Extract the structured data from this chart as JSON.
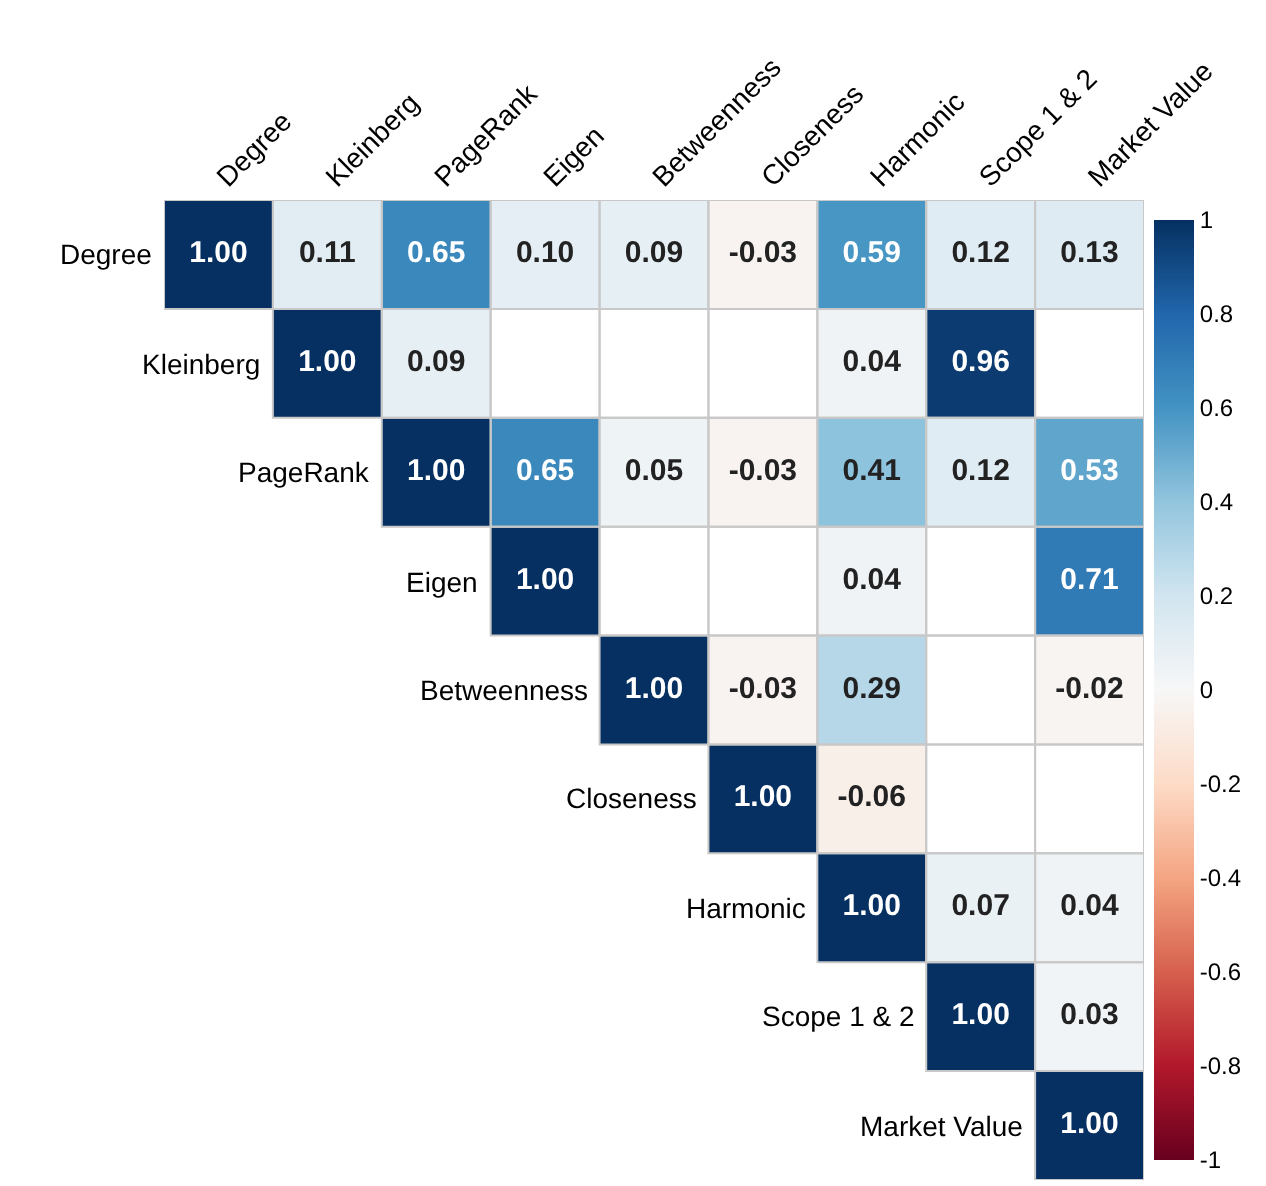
{
  "chart_data": {
    "type": "heatmap",
    "categories": [
      "Degree",
      "Kleinberg",
      "PageRank",
      "Eigen",
      "Betweenness",
      "Closeness",
      "Harmonic",
      "Scope 1 & 2",
      "Market Value"
    ],
    "y_categories": [
      "Degree",
      "Kleinberg",
      "PageRank",
      "Eigen",
      "Betweenness",
      "Closeness",
      "Harmonic",
      "Scope 1 & 2",
      "Market Value"
    ],
    "cells": [
      [
        1.0,
        0.11,
        0.65,
        0.1,
        0.09,
        -0.03,
        0.59,
        0.12,
        0.13
      ],
      [
        null,
        1.0,
        0.09,
        null,
        null,
        null,
        0.04,
        0.96,
        null
      ],
      [
        null,
        null,
        1.0,
        0.65,
        0.05,
        -0.03,
        0.41,
        0.12,
        0.53
      ],
      [
        null,
        null,
        null,
        1.0,
        null,
        null,
        0.04,
        null,
        0.71
      ],
      [
        null,
        null,
        null,
        null,
        1.0,
        -0.03,
        0.29,
        null,
        -0.02
      ],
      [
        null,
        null,
        null,
        null,
        null,
        1.0,
        -0.06,
        null,
        null
      ],
      [
        null,
        null,
        null,
        null,
        null,
        null,
        1.0,
        0.07,
        0.04
      ],
      [
        null,
        null,
        null,
        null,
        null,
        null,
        null,
        1.0,
        0.03
      ],
      [
        null,
        null,
        null,
        null,
        null,
        null,
        null,
        null,
        1.0
      ]
    ],
    "cell_labels": [
      [
        "1.00",
        "0.11",
        "0.65",
        "0.10",
        "0.09",
        "-0.03",
        "0.59",
        "0.12",
        "0.13"
      ],
      [
        null,
        "1.00",
        "0.09",
        null,
        null,
        null,
        "0.04",
        "0.96",
        null
      ],
      [
        null,
        null,
        "1.00",
        "0.65",
        "0.05",
        "-0.03",
        "0.41",
        "0.12",
        "0.53"
      ],
      [
        null,
        null,
        null,
        "1.00",
        null,
        null,
        "0.04",
        null,
        "0.71"
      ],
      [
        null,
        null,
        null,
        null,
        "1.00",
        "-0.03",
        "0.29",
        null,
        "-0.02"
      ],
      [
        null,
        null,
        null,
        null,
        null,
        "1.00",
        "-0.06",
        null,
        null
      ],
      [
        null,
        null,
        null,
        null,
        null,
        null,
        "1.00",
        "0.07",
        "0.04"
      ],
      [
        null,
        null,
        null,
        null,
        null,
        null,
        null,
        "1.00",
        "0.03"
      ],
      [
        null,
        null,
        null,
        null,
        null,
        null,
        null,
        null,
        "1.00"
      ]
    ],
    "clim": [
      -1,
      1
    ],
    "cticks": [
      -1,
      -0.8,
      -0.6,
      -0.4,
      -0.2,
      0,
      0.2,
      0.4,
      0.6,
      0.8,
      1
    ]
  }
}
